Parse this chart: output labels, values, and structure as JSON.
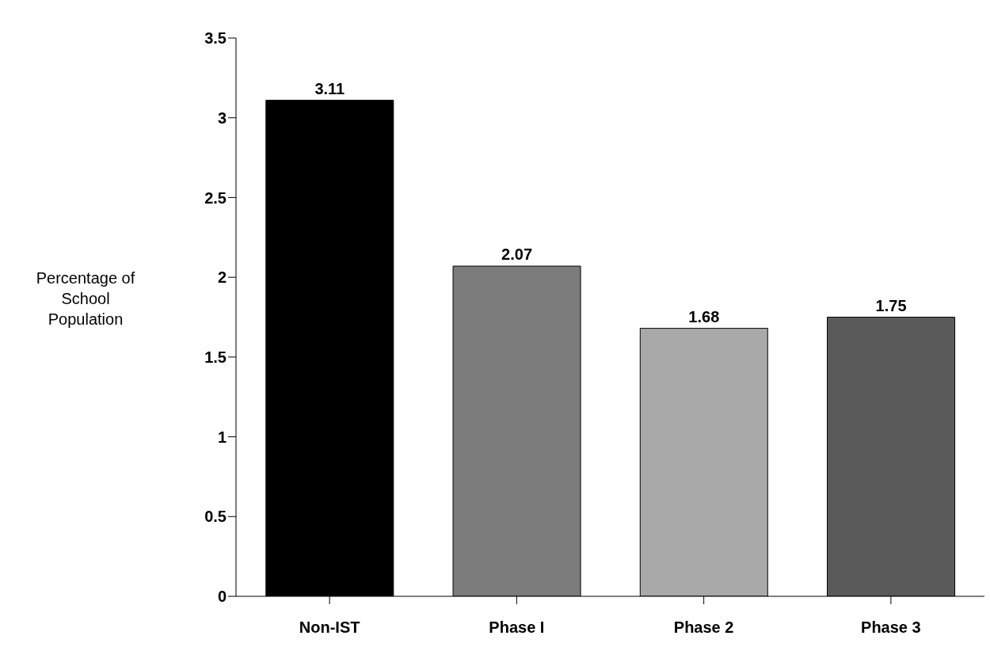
{
  "chart_data": {
    "type": "bar",
    "ylabel": "Percentage of School Population",
    "categories": [
      "Non-IST",
      "Phase I",
      "Phase 2",
      "Phase 3"
    ],
    "values": [
      3.11,
      2.07,
      1.68,
      1.75
    ],
    "colors": [
      "#000000",
      "#7c7c7c",
      "#a9a9a9",
      "#5a5a5a"
    ],
    "ylim": [
      0,
      3.5
    ],
    "yticks": [
      0,
      0.5,
      1,
      1.5,
      2,
      2.5,
      3,
      3.5
    ],
    "grid": false,
    "data_labels": true
  }
}
